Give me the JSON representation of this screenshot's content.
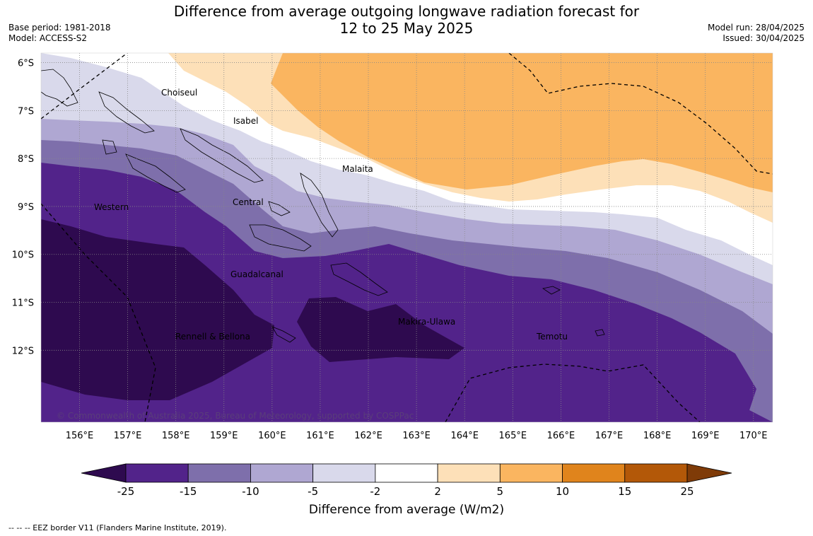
{
  "title": {
    "line1": "Difference from average outgoing longwave radiation forecast for",
    "line2": "12 to 25 May 2025"
  },
  "meta": {
    "base_period": "Base period: 1981-2018",
    "model": "Model: ACCESS-S2",
    "model_run": "Model run: 28/04/2025",
    "issued": "Issued: 30/04/2025"
  },
  "map": {
    "lon_range": [
      155.2,
      170.4
    ],
    "lat_range": [
      -13.5,
      -5.8
    ],
    "lon_ticks": [
      "156°E",
      "157°E",
      "158°E",
      "159°E",
      "160°E",
      "161°E",
      "162°E",
      "163°E",
      "164°E",
      "165°E",
      "166°E",
      "167°E",
      "168°E",
      "169°E",
      "170°E"
    ],
    "lat_ticks": [
      "6°S",
      "7°S",
      "8°S",
      "9°S",
      "10°S",
      "11°S",
      "12°S"
    ],
    "copyright": "© Commonwealth of Australia 2025, Bureau of Meteorology, supported by COSPPac",
    "provinces": [
      {
        "name": "Choiseul"
      },
      {
        "name": "Isabel"
      },
      {
        "name": "Malaita"
      },
      {
        "name": "Western"
      },
      {
        "name": "Central"
      },
      {
        "name": "Guadalcanal"
      },
      {
        "name": "Makira-Ulawa"
      },
      {
        "name": "Rennell & Bellona"
      },
      {
        "name": "Temotu"
      }
    ]
  },
  "colorbar": {
    "label": "Difference from average (W/m2)",
    "ticks": [
      "-25",
      "-15",
      "-10",
      "-5",
      "-2",
      "2",
      "5",
      "10",
      "15",
      "25"
    ],
    "colors": [
      "#2e0a4f",
      "#52238a",
      "#7e6fab",
      "#afa7d2",
      "#d9d9eb",
      "#ffffff",
      "#fde0b8",
      "#fab560",
      "#e0841c",
      "#b35808",
      "#7f3b08"
    ]
  },
  "footnote": "--  --  -- EEZ border V11 (Flanders Marine Institute, 2019)."
}
